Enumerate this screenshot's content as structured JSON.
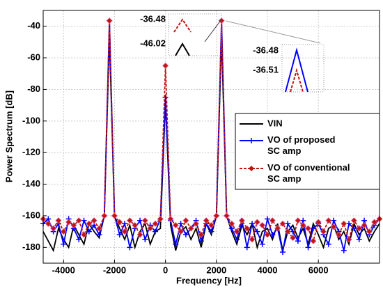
{
  "chart_data": {
    "type": "line",
    "x_label": "Frequency [Hz]",
    "y_label": "Power Spectrum [dB]",
    "x": [
      -4800,
      -4600,
      -4400,
      -4200,
      -4000,
      -3800,
      -3600,
      -3400,
      -3200,
      -3000,
      -2800,
      -2600,
      -2400,
      -2200,
      -2000,
      -1800,
      -1600,
      -1400,
      -1200,
      -1000,
      -800,
      -600,
      -400,
      -200,
      0,
      200,
      400,
      600,
      800,
      1000,
      1200,
      1400,
      1600,
      1800,
      2000,
      2200,
      2400,
      2600,
      2800,
      3000,
      3200,
      3400,
      3600,
      3800,
      4000,
      4200,
      4400,
      4600,
      4800,
      5000,
      5200,
      5400,
      5600,
      5800,
      6000,
      6200,
      6400,
      6600,
      6800,
      7000,
      7200,
      7400,
      7600,
      7800,
      8000,
      8200,
      8400
    ],
    "series": [
      {
        "name": "VIN",
        "color": "#000000",
        "marker": "none",
        "dash": false,
        "values": [
          -170,
          -176,
          -182,
          -168,
          -175,
          -180,
          -166,
          -172,
          -178,
          -165,
          -170,
          -174,
          -160,
          -46.02,
          -160,
          -168,
          -175,
          -166,
          -180,
          -170,
          -165,
          -178,
          -170,
          -168,
          -88,
          -166,
          -182,
          -170,
          -167,
          -175,
          -168,
          -180,
          -165,
          -172,
          -160,
          -46.02,
          -160,
          -170,
          -178,
          -166,
          -172,
          -165,
          -180,
          -170,
          -168,
          -175,
          -165,
          -182,
          -170,
          -166,
          -174,
          -168,
          -178,
          -165,
          -172,
          -180,
          -168,
          -166,
          -175,
          -170,
          -178,
          -165,
          -172,
          -168,
          -176,
          -170,
          -165
        ]
      },
      {
        "name": "VO of  proposed SC amp",
        "color": "#0000ff",
        "marker": "plus",
        "dash": false,
        "values": [
          -165,
          -162,
          -170,
          -165,
          -178,
          -162,
          -168,
          -175,
          -163,
          -170,
          -166,
          -172,
          -160,
          -36.48,
          -160,
          -172,
          -165,
          -180,
          -168,
          -163,
          -175,
          -166,
          -170,
          -162,
          -85,
          -163,
          -178,
          -165,
          -172,
          -168,
          -163,
          -176,
          -165,
          -170,
          -160,
          -36.48,
          -160,
          -168,
          -175,
          -163,
          -180,
          -165,
          -170,
          -178,
          -162,
          -172,
          -168,
          -183,
          -165,
          -170,
          -176,
          -163,
          -180,
          -168,
          -165,
          -172,
          -178,
          -163,
          -170,
          -182,
          -165,
          -168,
          -175,
          -163,
          -172,
          -166,
          -162
        ]
      },
      {
        "name": "VO of conventional SC amp",
        "color": "#c0150f",
        "marker": "diamond",
        "dash": true,
        "values": [
          -162,
          -165,
          -168,
          -163,
          -170,
          -164,
          -166,
          -163,
          -172,
          -165,
          -163,
          -168,
          -160,
          -36.51,
          -160,
          -164,
          -170,
          -163,
          -166,
          -172,
          -163,
          -168,
          -165,
          -162,
          -65,
          -162,
          -166,
          -170,
          -163,
          -168,
          -165,
          -172,
          -163,
          -166,
          -160,
          -36.51,
          -160,
          -165,
          -170,
          -163,
          -168,
          -175,
          -164,
          -166,
          -172,
          -163,
          -168,
          -165,
          -170,
          -174,
          -163,
          -166,
          -168,
          -176,
          -164,
          -170,
          -163,
          -167,
          -172,
          -165,
          -175,
          -163,
          -168,
          -166,
          -170,
          -164,
          -162
        ]
      }
    ],
    "annotations": [
      "-36.48",
      "-46.02",
      "-36.48",
      "-36.51"
    ],
    "xlim": [
      -4800,
      8400
    ],
    "ylim": [
      -190,
      -30
    ],
    "xticks": [
      -4000,
      -2000,
      0,
      2000,
      4000,
      6000
    ],
    "yticks": [
      -40,
      -60,
      -80,
      -100,
      -120,
      -140,
      -160,
      -180
    ],
    "grid": true
  }
}
